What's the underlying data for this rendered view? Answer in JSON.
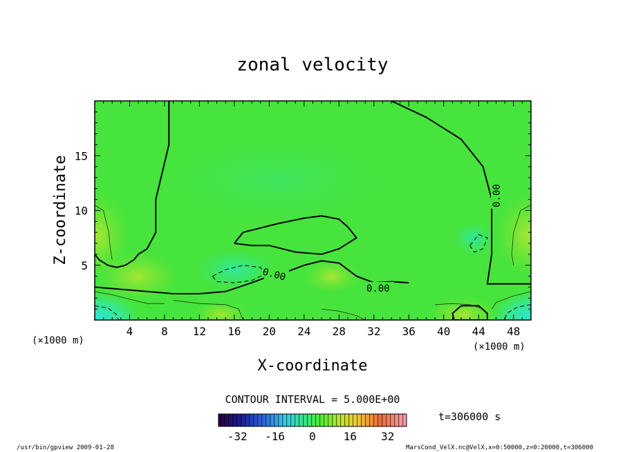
{
  "chart_data": {
    "type": "heatmap",
    "title": "zonal velocity",
    "xlabel": "X-coordinate",
    "ylabel": "Z-coordinate",
    "x_unit": "(×1000 m)",
    "y_unit": "(×1000 m)",
    "xlim": [
      0,
      50
    ],
    "ylim": [
      0,
      20
    ],
    "x_ticks": [
      "4",
      "8",
      "12",
      "16",
      "20",
      "24",
      "28",
      "32",
      "36",
      "40",
      "44",
      "48"
    ],
    "y_ticks": [
      "5",
      "10",
      "15"
    ],
    "contour_interval_text": "CONTOUR INTERVAL = 5.000E+00",
    "contour_labels": [
      "0.00",
      "0.00",
      "0.00"
    ],
    "time_text": "t=306000 s",
    "colorbar": {
      "range": [
        -40,
        40
      ],
      "tick_labels": [
        "-32",
        "-16",
        "0",
        "16",
        "32"
      ]
    },
    "footer_left": "/usr/bin/gpview 2009-01-28",
    "footer_right": "MarsCond_VelX.nc@VelX,x=0:50000,z=0:20000,t=306000",
    "zero_contours": [
      [
        [
          8.5,
          20
        ],
        [
          8.5,
          16
        ],
        [
          7,
          11
        ],
        [
          7,
          8
        ],
        [
          6,
          6.5
        ],
        [
          5,
          6
        ],
        [
          4.5,
          5.5
        ],
        [
          3.5,
          5
        ],
        [
          2.5,
          4.8
        ],
        [
          1.5,
          5
        ],
        [
          0.5,
          5.5
        ],
        [
          0,
          6
        ]
      ],
      [
        [
          34,
          20
        ],
        [
          38,
          18.5
        ],
        [
          42,
          16.5
        ],
        [
          44.5,
          14
        ],
        [
          45.5,
          11
        ],
        [
          45.5,
          6
        ],
        [
          45,
          3.3
        ],
        [
          50,
          3.3
        ]
      ],
      [
        [
          0,
          3
        ],
        [
          3,
          2.8
        ],
        [
          6,
          2.6
        ],
        [
          9,
          2.4
        ],
        [
          12,
          2.4
        ],
        [
          15,
          2.6
        ],
        [
          18,
          3.4
        ],
        [
          20,
          4
        ],
        [
          22,
          4.4
        ],
        [
          24,
          5
        ],
        [
          26,
          5.4
        ],
        [
          28,
          5.2
        ],
        [
          30,
          4
        ],
        [
          32,
          3.4
        ],
        [
          34,
          3.5
        ],
        [
          36,
          3.4
        ]
      ],
      [
        [
          16,
          7
        ],
        [
          17,
          8
        ],
        [
          21,
          8.8
        ],
        [
          24,
          9.3
        ],
        [
          26,
          9.5
        ],
        [
          28,
          9.2
        ],
        [
          29,
          8.5
        ],
        [
          30,
          7.5
        ],
        [
          28,
          6.5
        ],
        [
          26,
          6
        ],
        [
          23,
          6.2
        ],
        [
          20,
          6.8
        ],
        [
          18,
          6.8
        ],
        [
          16,
          7
        ]
      ],
      [
        [
          42,
          1.3
        ],
        [
          41,
          0.6
        ],
        [
          41.2,
          0
        ],
        [
          45,
          0
        ],
        [
          45,
          0.6
        ],
        [
          44,
          1.3
        ],
        [
          42,
          1.3
        ]
      ]
    ],
    "dashed_contours": [
      [
        [
          13.5,
          4
        ],
        [
          15,
          4.6
        ],
        [
          17,
          5
        ],
        [
          19,
          4.8
        ],
        [
          19.5,
          4.2
        ],
        [
          18,
          3.6
        ],
        [
          16,
          3.4
        ],
        [
          14,
          3.5
        ],
        [
          13.5,
          4
        ]
      ],
      [
        [
          43,
          6.8
        ],
        [
          44,
          7.8
        ],
        [
          45,
          7.5
        ],
        [
          44.5,
          6.5
        ],
        [
          43.5,
          6.2
        ],
        [
          43,
          6.8
        ]
      ],
      [
        [
          0,
          1.3
        ],
        [
          1.5,
          1.1
        ],
        [
          2.5,
          0.5
        ],
        [
          2.7,
          0
        ]
      ],
      [
        [
          50,
          1.4
        ],
        [
          48.5,
          1.2
        ],
        [
          47.2,
          0.6
        ],
        [
          47,
          0
        ]
      ]
    ],
    "thin_contours": [
      [
        [
          0,
          10.5
        ],
        [
          1,
          10
        ],
        [
          1.6,
          8
        ],
        [
          1.8,
          6.5
        ],
        [
          2,
          5.5
        ]
      ],
      [
        [
          50,
          10.5
        ],
        [
          48.8,
          10
        ],
        [
          48,
          8
        ],
        [
          47.8,
          6
        ],
        [
          48,
          5
        ]
      ],
      [
        [
          0,
          2.6
        ],
        [
          2,
          2.3
        ],
        [
          4,
          1.9
        ],
        [
          6,
          1.5
        ],
        [
          8,
          1.5
        ]
      ],
      [
        [
          50,
          2.6
        ],
        [
          48,
          2.2
        ],
        [
          46,
          1.6
        ],
        [
          45.5,
          1
        ]
      ],
      [
        [
          9,
          1.8
        ],
        [
          12,
          1.5
        ],
        [
          15,
          1.4
        ],
        [
          16.5,
          1
        ],
        [
          17,
          0
        ]
      ],
      [
        [
          26,
          1
        ],
        [
          28,
          0.8
        ],
        [
          30,
          0.4
        ],
        [
          31,
          0
        ]
      ],
      [
        [
          39,
          1.4
        ],
        [
          41,
          1.5
        ],
        [
          43,
          1.4
        ],
        [
          44.5,
          1
        ],
        [
          45,
          0.5
        ]
      ]
    ]
  }
}
